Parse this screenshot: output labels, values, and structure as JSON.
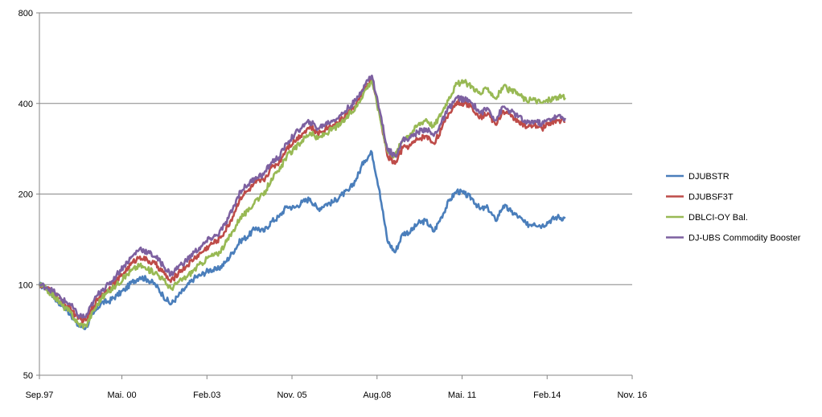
{
  "chart_data": {
    "type": "line",
    "title": "",
    "xlabel": "",
    "ylabel": "",
    "y_scale": "log",
    "ylim": [
      50,
      800
    ],
    "y_ticks": [
      50,
      100,
      200,
      400,
      800
    ],
    "y_tick_labels": [
      "50",
      "100",
      "200",
      "400",
      "800"
    ],
    "x_tick_labels": [
      "Sep.97",
      "Mai. 00",
      "Feb.03",
      "Nov. 05",
      "Aug.08",
      "Mai. 11",
      "Feb.14",
      "Nov. 16"
    ],
    "x_tick_dates": [
      "1997-09",
      "2000-05",
      "2003-02",
      "2005-11",
      "2008-08",
      "2011-05",
      "2014-02",
      "2016-11"
    ],
    "xlim": [
      "1997-09",
      "2016-11"
    ],
    "grid": "horizontal",
    "legend_position": "right",
    "series": [
      {
        "name": "DJUBSTR",
        "color": "#4a7ebb",
        "points": [
          [
            "1997-09",
            100
          ],
          [
            "1997-12",
            97
          ],
          [
            "1998-03",
            90
          ],
          [
            "1998-06",
            85
          ],
          [
            "1998-09",
            80
          ],
          [
            "1998-12",
            73
          ],
          [
            "1999-03",
            72
          ],
          [
            "1999-06",
            80
          ],
          [
            "1999-09",
            87
          ],
          [
            "1999-12",
            88
          ],
          [
            "2000-03",
            92
          ],
          [
            "2000-06",
            96
          ],
          [
            "2000-09",
            102
          ],
          [
            "2000-12",
            106
          ],
          [
            "2001-03",
            104
          ],
          [
            "2001-06",
            100
          ],
          [
            "2001-09",
            92
          ],
          [
            "2001-12",
            86
          ],
          [
            "2002-03",
            92
          ],
          [
            "2002-06",
            98
          ],
          [
            "2002-09",
            105
          ],
          [
            "2002-12",
            108
          ],
          [
            "2003-03",
            112
          ],
          [
            "2003-06",
            112
          ],
          [
            "2003-09",
            118
          ],
          [
            "2003-12",
            128
          ],
          [
            "2004-03",
            140
          ],
          [
            "2004-06",
            145
          ],
          [
            "2004-09",
            155
          ],
          [
            "2004-12",
            150
          ],
          [
            "2005-03",
            162
          ],
          [
            "2005-06",
            168
          ],
          [
            "2005-09",
            182
          ],
          [
            "2005-12",
            180
          ],
          [
            "2006-03",
            188
          ],
          [
            "2006-06",
            193
          ],
          [
            "2006-09",
            178
          ],
          [
            "2006-12",
            185
          ],
          [
            "2007-03",
            188
          ],
          [
            "2007-06",
            198
          ],
          [
            "2007-09",
            205
          ],
          [
            "2007-12",
            225
          ],
          [
            "2008-03",
            258
          ],
          [
            "2008-06",
            275
          ],
          [
            "2008-09",
            205
          ],
          [
            "2008-12",
            140
          ],
          [
            "2009-03",
            128
          ],
          [
            "2009-06",
            148
          ],
          [
            "2009-09",
            150
          ],
          [
            "2009-12",
            160
          ],
          [
            "2010-03",
            163
          ],
          [
            "2010-06",
            150
          ],
          [
            "2010-09",
            168
          ],
          [
            "2010-12",
            190
          ],
          [
            "2011-03",
            205
          ],
          [
            "2011-06",
            200
          ],
          [
            "2011-09",
            193
          ],
          [
            "2011-12",
            178
          ],
          [
            "2012-03",
            180
          ],
          [
            "2012-06",
            163
          ],
          [
            "2012-09",
            183
          ],
          [
            "2012-12",
            175
          ],
          [
            "2013-03",
            168
          ],
          [
            "2013-06",
            158
          ],
          [
            "2013-09",
            160
          ],
          [
            "2013-12",
            157
          ],
          [
            "2014-03",
            163
          ],
          [
            "2014-06",
            168
          ],
          [
            "2014-09",
            166
          ]
        ]
      },
      {
        "name": "DJUBSF3T",
        "color": "#be4b48",
        "points": [
          [
            "1997-09",
            100
          ],
          [
            "1997-12",
            97
          ],
          [
            "1998-03",
            93
          ],
          [
            "1998-06",
            87
          ],
          [
            "1998-09",
            84
          ],
          [
            "1998-12",
            77
          ],
          [
            "1999-03",
            76
          ],
          [
            "1999-06",
            85
          ],
          [
            "1999-09",
            93
          ],
          [
            "1999-12",
            97
          ],
          [
            "2000-03",
            103
          ],
          [
            "2000-06",
            110
          ],
          [
            "2000-09",
            118
          ],
          [
            "2000-12",
            124
          ],
          [
            "2001-03",
            120
          ],
          [
            "2001-06",
            117
          ],
          [
            "2001-09",
            110
          ],
          [
            "2001-12",
            102
          ],
          [
            "2002-03",
            110
          ],
          [
            "2002-06",
            115
          ],
          [
            "2002-09",
            122
          ],
          [
            "2002-12",
            128
          ],
          [
            "2003-03",
            135
          ],
          [
            "2003-06",
            140
          ],
          [
            "2003-09",
            150
          ],
          [
            "2003-12",
            168
          ],
          [
            "2004-03",
            195
          ],
          [
            "2004-06",
            205
          ],
          [
            "2004-09",
            218
          ],
          [
            "2004-12",
            222
          ],
          [
            "2005-03",
            245
          ],
          [
            "2005-06",
            255
          ],
          [
            "2005-09",
            285
          ],
          [
            "2005-12",
            300
          ],
          [
            "2006-03",
            318
          ],
          [
            "2006-06",
            335
          ],
          [
            "2006-09",
            318
          ],
          [
            "2006-12",
            330
          ],
          [
            "2007-03",
            340
          ],
          [
            "2007-06",
            352
          ],
          [
            "2007-09",
            375
          ],
          [
            "2007-12",
            398
          ],
          [
            "2008-03",
            445
          ],
          [
            "2008-06",
            482
          ],
          [
            "2008-09",
            370
          ],
          [
            "2008-12",
            268
          ],
          [
            "2009-03",
            252
          ],
          [
            "2009-06",
            285
          ],
          [
            "2009-09",
            290
          ],
          [
            "2009-12",
            305
          ],
          [
            "2010-03",
            312
          ],
          [
            "2010-06",
            295
          ],
          [
            "2010-09",
            328
          ],
          [
            "2010-12",
            372
          ],
          [
            "2011-03",
            405
          ],
          [
            "2011-06",
            400
          ],
          [
            "2011-09",
            388
          ],
          [
            "2011-12",
            360
          ],
          [
            "2012-03",
            372
          ],
          [
            "2012-06",
            340
          ],
          [
            "2012-09",
            378
          ],
          [
            "2012-12",
            362
          ],
          [
            "2013-03",
            350
          ],
          [
            "2013-06",
            332
          ],
          [
            "2013-09",
            338
          ],
          [
            "2013-12",
            330
          ],
          [
            "2014-03",
            345
          ],
          [
            "2014-06",
            352
          ],
          [
            "2014-09",
            348
          ]
        ]
      },
      {
        "name": "DBLCI-OY Bal.",
        "color": "#98b954",
        "points": [
          [
            "1997-09",
            100
          ],
          [
            "1997-12",
            96
          ],
          [
            "1998-03",
            91
          ],
          [
            "1998-06",
            85
          ],
          [
            "1998-09",
            81
          ],
          [
            "1998-12",
            74
          ],
          [
            "1999-03",
            73
          ],
          [
            "1999-06",
            82
          ],
          [
            "1999-09",
            90
          ],
          [
            "1999-12",
            95
          ],
          [
            "2000-03",
            100
          ],
          [
            "2000-06",
            106
          ],
          [
            "2000-09",
            112
          ],
          [
            "2000-12",
            116
          ],
          [
            "2001-03",
            112
          ],
          [
            "2001-06",
            110
          ],
          [
            "2001-09",
            104
          ],
          [
            "2001-12",
            97
          ],
          [
            "2002-03",
            102
          ],
          [
            "2002-06",
            106
          ],
          [
            "2002-09",
            112
          ],
          [
            "2002-12",
            118
          ],
          [
            "2003-03",
            124
          ],
          [
            "2003-06",
            126
          ],
          [
            "2003-09",
            136
          ],
          [
            "2003-12",
            150
          ],
          [
            "2004-03",
            168
          ],
          [
            "2004-06",
            175
          ],
          [
            "2004-09",
            192
          ],
          [
            "2004-12",
            198
          ],
          [
            "2005-03",
            225
          ],
          [
            "2005-06",
            238
          ],
          [
            "2005-09",
            268
          ],
          [
            "2005-12",
            282
          ],
          [
            "2006-03",
            302
          ],
          [
            "2006-06",
            320
          ],
          [
            "2006-09",
            305
          ],
          [
            "2006-12",
            318
          ],
          [
            "2007-03",
            330
          ],
          [
            "2007-06",
            342
          ],
          [
            "2007-09",
            365
          ],
          [
            "2007-12",
            390
          ],
          [
            "2008-03",
            438
          ],
          [
            "2008-06",
            478
          ],
          [
            "2008-09",
            365
          ],
          [
            "2008-12",
            278
          ],
          [
            "2009-03",
            268
          ],
          [
            "2009-06",
            305
          ],
          [
            "2009-09",
            318
          ],
          [
            "2009-12",
            340
          ],
          [
            "2010-03",
            355
          ],
          [
            "2010-06",
            335
          ],
          [
            "2010-09",
            372
          ],
          [
            "2010-12",
            420
          ],
          [
            "2011-03",
            465
          ],
          [
            "2011-06",
            470
          ],
          [
            "2011-09",
            455
          ],
          [
            "2011-12",
            430
          ],
          [
            "2012-03",
            450
          ],
          [
            "2012-06",
            415
          ],
          [
            "2012-09",
            455
          ],
          [
            "2012-12",
            440
          ],
          [
            "2013-03",
            430
          ],
          [
            "2013-06",
            408
          ],
          [
            "2013-09",
            412
          ],
          [
            "2013-12",
            402
          ],
          [
            "2014-03",
            412
          ],
          [
            "2014-06",
            420
          ],
          [
            "2014-09",
            418
          ]
        ]
      },
      {
        "name": "DJ-UBS Commodity  Booster",
        "color": "#7d60a0",
        "points": [
          [
            "1997-09",
            100
          ],
          [
            "1997-12",
            98
          ],
          [
            "1998-03",
            94
          ],
          [
            "1998-06",
            89
          ],
          [
            "1998-09",
            86
          ],
          [
            "1998-12",
            79
          ],
          [
            "1999-03",
            78
          ],
          [
            "1999-06",
            88
          ],
          [
            "1999-09",
            96
          ],
          [
            "1999-12",
            100
          ],
          [
            "2000-03",
            108
          ],
          [
            "2000-06",
            116
          ],
          [
            "2000-09",
            124
          ],
          [
            "2000-12",
            132
          ],
          [
            "2001-03",
            128
          ],
          [
            "2001-06",
            124
          ],
          [
            "2001-09",
            116
          ],
          [
            "2001-12",
            108
          ],
          [
            "2002-03",
            115
          ],
          [
            "2002-06",
            120
          ],
          [
            "2002-09",
            128
          ],
          [
            "2002-12",
            134
          ],
          [
            "2003-03",
            142
          ],
          [
            "2003-06",
            146
          ],
          [
            "2003-09",
            158
          ],
          [
            "2003-12",
            178
          ],
          [
            "2004-03",
            205
          ],
          [
            "2004-06",
            215
          ],
          [
            "2004-09",
            228
          ],
          [
            "2004-12",
            232
          ],
          [
            "2005-03",
            255
          ],
          [
            "2005-06",
            265
          ],
          [
            "2005-09",
            295
          ],
          [
            "2005-12",
            315
          ],
          [
            "2006-03",
            335
          ],
          [
            "2006-06",
            348
          ],
          [
            "2006-09",
            330
          ],
          [
            "2006-12",
            342
          ],
          [
            "2007-03",
            352
          ],
          [
            "2007-06",
            365
          ],
          [
            "2007-09",
            388
          ],
          [
            "2007-12",
            410
          ],
          [
            "2008-03",
            460
          ],
          [
            "2008-06",
            495
          ],
          [
            "2008-09",
            380
          ],
          [
            "2008-12",
            282
          ],
          [
            "2009-03",
            268
          ],
          [
            "2009-06",
            302
          ],
          [
            "2009-09",
            308
          ],
          [
            "2009-12",
            322
          ],
          [
            "2010-03",
            330
          ],
          [
            "2010-06",
            312
          ],
          [
            "2010-09",
            345
          ],
          [
            "2010-12",
            388
          ],
          [
            "2011-03",
            418
          ],
          [
            "2011-06",
            412
          ],
          [
            "2011-09",
            400
          ],
          [
            "2011-12",
            372
          ],
          [
            "2012-03",
            385
          ],
          [
            "2012-06",
            352
          ],
          [
            "2012-09",
            390
          ],
          [
            "2012-12",
            375
          ],
          [
            "2013-03",
            362
          ],
          [
            "2013-06",
            343
          ],
          [
            "2013-09",
            350
          ],
          [
            "2013-12",
            342
          ],
          [
            "2014-03",
            355
          ],
          [
            "2014-06",
            362
          ],
          [
            "2014-09",
            358
          ]
        ]
      }
    ]
  }
}
